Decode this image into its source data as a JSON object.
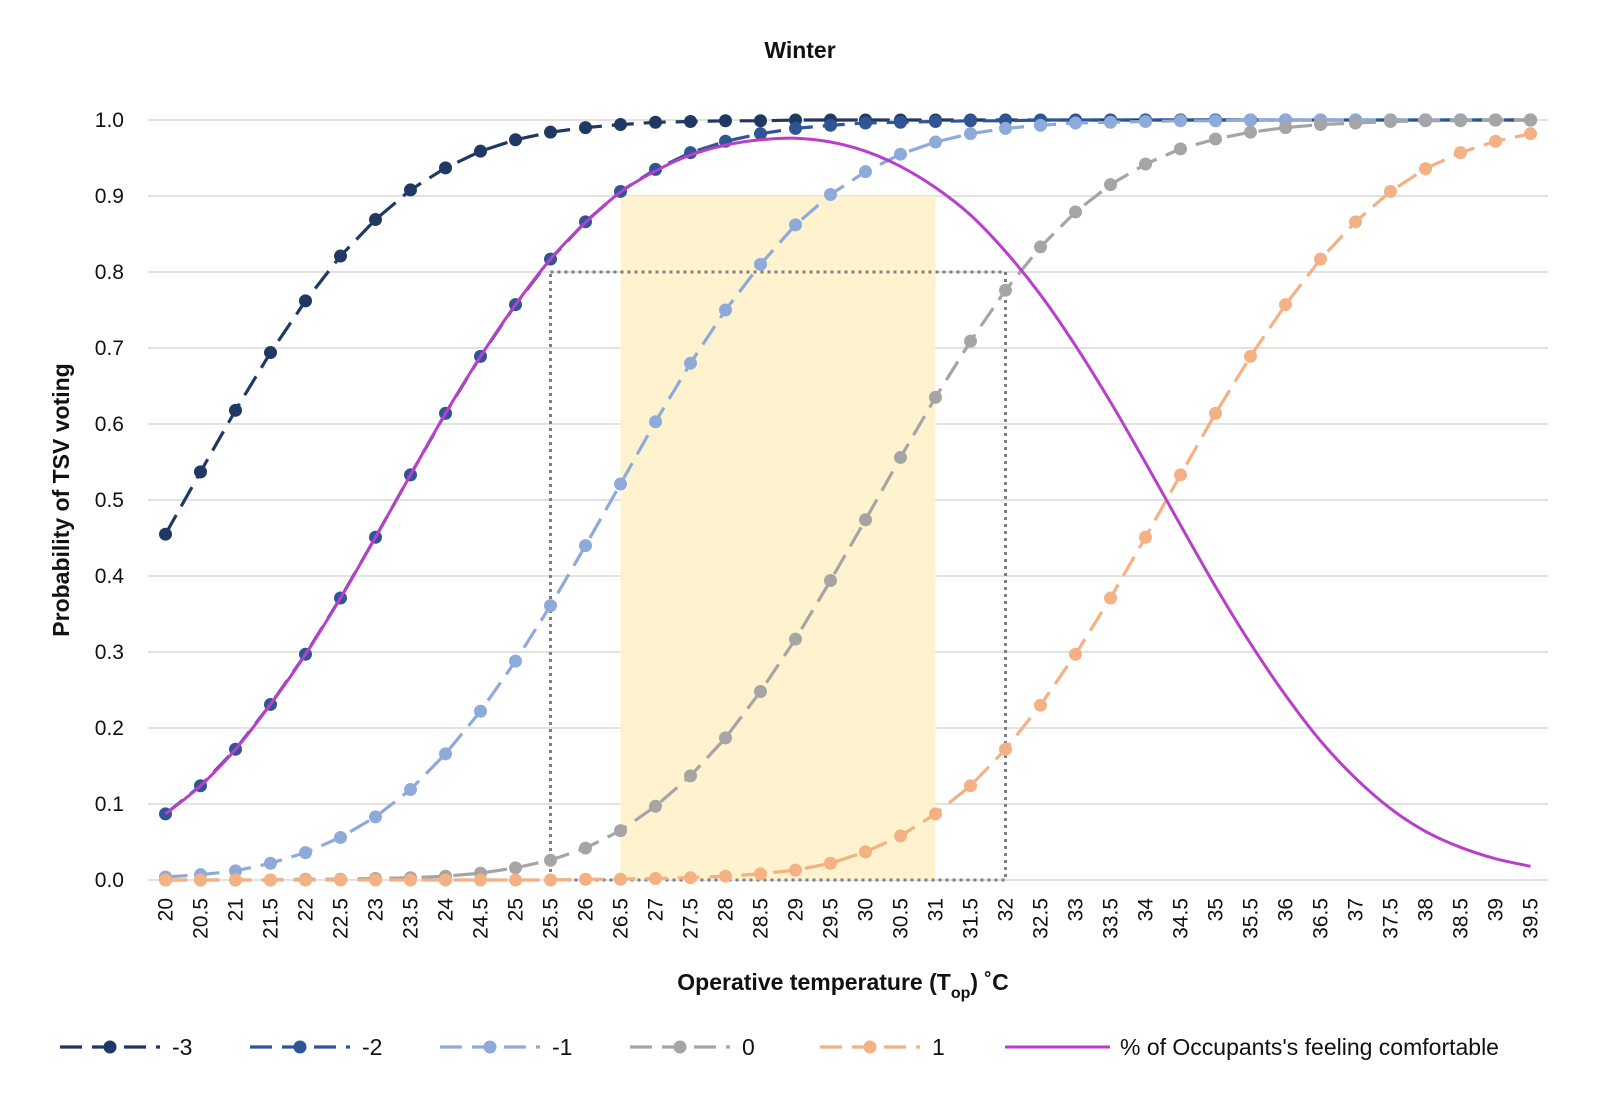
{
  "chart_data": {
    "type": "line",
    "title": "Winter",
    "xlabel": "Operative temperature (T",
    "xlabel_sub": "op",
    "xlabel_unit": ") ˚C",
    "ylabel": "Probability of TSV voting",
    "ylim": [
      0,
      1
    ],
    "yticks": [
      "0.0",
      "0.1",
      "0.2",
      "0.3",
      "0.4",
      "0.5",
      "0.6",
      "0.7",
      "0.8",
      "0.9",
      "1.0"
    ],
    "grid": true,
    "legend_position": "bottom",
    "x": [
      "20",
      "20.5",
      "21",
      "21.5",
      "22",
      "22.5",
      "23",
      "23.5",
      "24",
      "24.5",
      "25",
      "25.5",
      "26",
      "26.5",
      "27",
      "27.5",
      "28",
      "28.5",
      "29",
      "29.5",
      "30",
      "30.5",
      "31",
      "31.5",
      "32",
      "32.5",
      "33",
      "33.5",
      "34",
      "34.5",
      "35",
      "35.5",
      "36",
      "36.5",
      "37",
      "37.5",
      "38",
      "38.5",
      "39",
      "39.5"
    ],
    "series": [
      {
        "name": "-3",
        "color": "#1f3864",
        "style": "dashed-markers",
        "values": [
          0.455,
          0.537,
          0.618,
          0.694,
          0.762,
          0.821,
          0.869,
          0.908,
          0.937,
          0.959,
          0.974,
          0.984,
          0.99,
          0.994,
          0.997,
          0.998,
          0.999,
          0.999,
          1.0,
          1.0,
          1.0,
          1.0,
          1.0,
          1.0,
          1.0,
          1.0,
          1.0,
          1.0,
          1.0,
          1.0,
          1.0,
          1.0,
          1.0,
          1.0,
          1.0,
          1.0,
          1.0,
          1.0,
          1.0,
          1.0
        ]
      },
      {
        "name": "-2",
        "color": "#2f5597",
        "style": "dashed-markers",
        "values": [
          0.087,
          0.124,
          0.172,
          0.231,
          0.297,
          0.371,
          0.451,
          0.533,
          0.614,
          0.689,
          0.757,
          0.817,
          0.866,
          0.906,
          0.935,
          0.957,
          0.972,
          0.982,
          0.989,
          0.993,
          0.996,
          0.997,
          0.998,
          0.999,
          0.999,
          1.0,
          1.0,
          1.0,
          1.0,
          1.0,
          1.0,
          1.0,
          1.0,
          1.0,
          1.0,
          1.0,
          1.0,
          1.0,
          1.0,
          1.0
        ]
      },
      {
        "name": "-1",
        "color": "#8eaadb",
        "style": "dashed-markers",
        "values": [
          0.004,
          0.007,
          0.012,
          0.022,
          0.036,
          0.056,
          0.083,
          0.119,
          0.166,
          0.222,
          0.288,
          0.361,
          0.44,
          0.521,
          0.603,
          0.68,
          0.75,
          0.81,
          0.862,
          0.902,
          0.932,
          0.955,
          0.971,
          0.982,
          0.989,
          0.993,
          0.996,
          0.997,
          0.998,
          0.999,
          0.999,
          1.0,
          1.0,
          1.0,
          1.0,
          1.0,
          1.0,
          1.0,
          1.0,
          1.0
        ]
      },
      {
        "name": "0",
        "color": "#a5a5a5",
        "style": "dashed-markers",
        "values": [
          0.0,
          0.0,
          0.0,
          0.0,
          0.001,
          0.001,
          0.002,
          0.003,
          0.005,
          0.009,
          0.016,
          0.026,
          0.042,
          0.065,
          0.097,
          0.137,
          0.187,
          0.248,
          0.317,
          0.394,
          0.474,
          0.556,
          0.635,
          0.709,
          0.776,
          0.833,
          0.879,
          0.915,
          0.942,
          0.962,
          0.975,
          0.984,
          0.99,
          0.994,
          0.996,
          0.998,
          0.999,
          0.999,
          1.0,
          1.0
        ]
      },
      {
        "name": "1",
        "color": "#f4b183",
        "style": "dashed-markers",
        "values": [
          0.0,
          0.0,
          0.0,
          0.0,
          0.0,
          0.0,
          0.0,
          0.0,
          0.0,
          0.0,
          0.0,
          0.0,
          0.001,
          0.001,
          0.002,
          0.003,
          0.005,
          0.008,
          0.013,
          0.022,
          0.037,
          0.058,
          0.087,
          0.124,
          0.172,
          0.23,
          0.297,
          0.371,
          0.451,
          0.533,
          0.614,
          0.689,
          0.757,
          0.817,
          0.866,
          0.906,
          0.936,
          0.957,
          0.972,
          0.982
        ]
      },
      {
        "name": "% of Occupants's feeling comfortable",
        "color": "#b83fc8",
        "style": "solid"
      }
    ],
    "shaded_region": {
      "x_from": "26.5",
      "x_to": "31",
      "y_to": 0.9,
      "color": "#fff2cc"
    },
    "dotted_box": {
      "x_from": "25.5",
      "x_to": "32",
      "y_to": 0.8,
      "color": "#7f7f7f"
    }
  }
}
